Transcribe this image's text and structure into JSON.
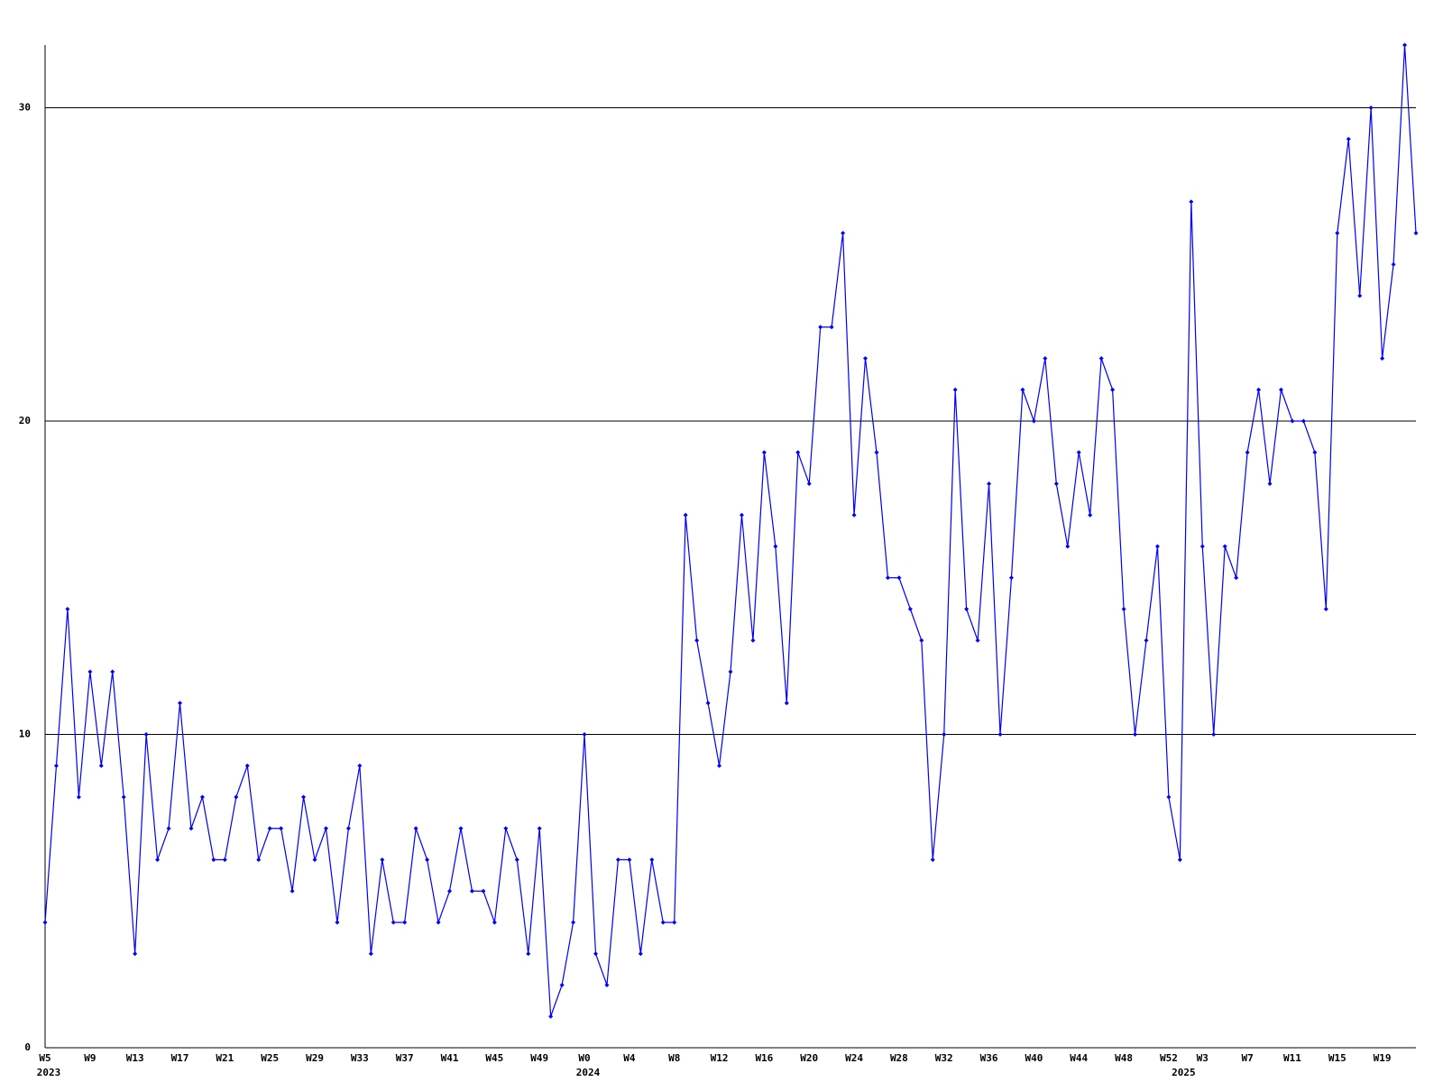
{
  "chart_data": {
    "type": "line",
    "categories": [
      "W5",
      null,
      null,
      null,
      "W9",
      null,
      null,
      null,
      "W13",
      null,
      null,
      null,
      "W17",
      null,
      null,
      null,
      "W21",
      null,
      null,
      null,
      "W25",
      null,
      null,
      null,
      "W29",
      null,
      null,
      null,
      "W33",
      null,
      null,
      null,
      "W37",
      null,
      null,
      null,
      "W41",
      null,
      null,
      null,
      "W45",
      null,
      null,
      null,
      "W49",
      null,
      null,
      null,
      "W0",
      null,
      null,
      null,
      "W4",
      null,
      null,
      null,
      "W8",
      null,
      null,
      null,
      "W12",
      null,
      null,
      null,
      "W16",
      null,
      null,
      null,
      "W20",
      null,
      null,
      null,
      "W24",
      null,
      null,
      null,
      "W28",
      null,
      null,
      null,
      "W32",
      null,
      null,
      null,
      "W36",
      null,
      null,
      null,
      "W40",
      null,
      null,
      null,
      "W44",
      null,
      null,
      null,
      "W48",
      null,
      null,
      null,
      "W52",
      null,
      null,
      "W3",
      null,
      null,
      null,
      "W7",
      null,
      null,
      null,
      "W11",
      null,
      null,
      null,
      "W15",
      null,
      null,
      null,
      "W19",
      null,
      null,
      null
    ],
    "category_years": [
      "2023",
      null,
      null,
      null,
      null,
      null,
      null,
      null,
      null,
      null,
      null,
      null,
      null,
      null,
      null,
      null,
      null,
      null,
      null,
      null,
      null,
      null,
      null,
      null,
      null,
      null,
      null,
      null,
      null,
      null,
      null,
      null,
      null,
      null,
      null,
      null,
      null,
      null,
      null,
      null,
      null,
      null,
      null,
      null,
      null,
      null,
      null,
      null,
      "2024",
      null,
      null,
      null,
      null,
      null,
      null,
      null,
      null,
      null,
      null,
      null,
      null,
      null,
      null,
      null,
      null,
      null,
      null,
      null,
      null,
      null,
      null,
      null,
      null,
      null,
      null,
      null,
      null,
      null,
      null,
      null,
      null,
      null,
      null,
      null,
      null,
      null,
      null,
      null,
      null,
      null,
      null,
      null,
      null,
      null,
      null,
      null,
      null,
      null,
      null,
      null,
      null,
      "2025",
      null,
      null,
      null,
      null,
      null,
      null,
      null,
      null,
      null,
      null,
      null,
      null,
      null,
      null,
      null,
      null,
      null,
      null,
      null,
      null,
      null
    ],
    "series": [
      {
        "color": "#0000ff",
        "values": [
          4,
          9,
          14,
          8,
          12,
          9,
          12,
          8,
          3,
          10,
          6,
          7,
          11,
          7,
          8,
          6,
          6,
          8,
          9,
          6,
          7,
          7,
          5,
          8,
          6,
          7,
          4,
          7,
          9,
          3,
          6,
          4,
          4,
          7,
          6,
          4,
          5,
          7,
          5,
          5,
          4,
          7,
          6,
          3,
          7,
          1,
          2,
          4,
          10,
          3,
          2,
          6,
          6,
          3,
          6,
          4,
          4,
          17,
          13,
          11,
          9,
          12,
          17,
          13,
          19,
          16,
          11,
          19,
          18,
          23,
          23,
          26,
          17,
          22,
          19,
          15,
          15,
          14,
          13,
          6,
          10,
          21,
          14,
          13,
          18,
          10,
          15,
          21,
          20,
          22,
          18,
          16,
          19,
          17,
          22,
          21,
          14,
          10,
          13,
          16,
          8,
          6,
          27,
          16,
          10,
          16,
          15,
          19,
          21,
          18,
          21,
          20,
          20,
          19,
          14,
          26,
          29,
          24,
          30,
          22,
          25,
          32,
          26
        ]
      }
    ],
    "ylim": [
      0,
      32
    ],
    "yticks": [
      0,
      10,
      20,
      30
    ],
    "grid": true
  }
}
